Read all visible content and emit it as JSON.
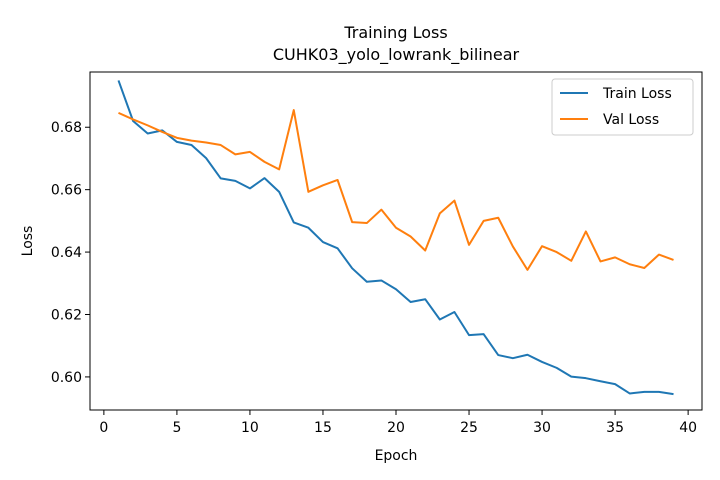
{
  "chart_data": {
    "type": "line",
    "title": "Training Loss",
    "subtitle": "CUHK03_yolo_lowrank_bilinear",
    "xlabel": "Epoch",
    "ylabel": "Loss",
    "xlim": [
      -0.95,
      40.95
    ],
    "ylim": [
      0.5894,
      0.6977
    ],
    "xticks": [
      0,
      5,
      10,
      15,
      20,
      25,
      30,
      35,
      40
    ],
    "yticks": [
      0.6,
      0.62,
      0.64,
      0.66,
      0.68
    ],
    "xtick_labels": [
      "0",
      "5",
      "10",
      "15",
      "20",
      "25",
      "30",
      "35",
      "40"
    ],
    "ytick_labels": [
      "0.60",
      "0.62",
      "0.64",
      "0.66",
      "0.68"
    ],
    "grid": false,
    "legend_position": "top-right",
    "x": [
      1,
      2,
      3,
      4,
      5,
      6,
      7,
      8,
      9,
      10,
      11,
      12,
      13,
      14,
      15,
      16,
      17,
      18,
      19,
      20,
      21,
      22,
      23,
      24,
      25,
      26,
      27,
      28,
      29,
      30,
      31,
      32,
      33,
      34,
      35,
      36,
      37,
      38,
      39
    ],
    "series": [
      {
        "name": "Train Loss",
        "color": "#1f77b4",
        "values": [
          0.695,
          0.682,
          0.678,
          0.679,
          0.6753,
          0.6743,
          0.6701,
          0.6636,
          0.6628,
          0.6604,
          0.6637,
          0.6593,
          0.6495,
          0.6478,
          0.6432,
          0.6412,
          0.6348,
          0.6305,
          0.6309,
          0.6281,
          0.624,
          0.6249,
          0.6184,
          0.6208,
          0.6134,
          0.6137,
          0.607,
          0.606,
          0.6071,
          0.6048,
          0.6029,
          0.6001,
          0.5996,
          0.5986,
          0.5977,
          0.5947,
          0.5952,
          0.5952,
          0.5945
        ]
      },
      {
        "name": "Val Loss",
        "color": "#ff7f0e",
        "values": [
          0.6846,
          0.6825,
          0.6806,
          0.6785,
          0.6766,
          0.6757,
          0.6751,
          0.6743,
          0.6713,
          0.6721,
          0.6689,
          0.6665,
          0.6855,
          0.6593,
          0.6614,
          0.6631,
          0.6496,
          0.6493,
          0.6536,
          0.6478,
          0.645,
          0.6405,
          0.6524,
          0.6565,
          0.6423,
          0.65,
          0.651,
          0.6418,
          0.6343,
          0.6419,
          0.64,
          0.6372,
          0.6466,
          0.637,
          0.6383,
          0.6361,
          0.6349,
          0.6392,
          0.6375
        ]
      }
    ]
  }
}
